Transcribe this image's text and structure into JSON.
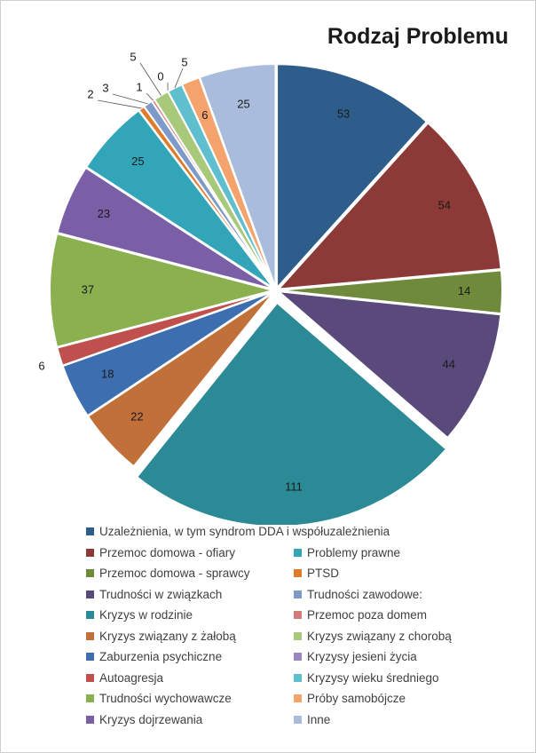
{
  "chart_data": {
    "type": "pie",
    "title": "Rodzaj Problemu",
    "legend_placement": "bottom",
    "slices": [
      {
        "name": "Uzależnienia, w tym syndrom DDA i współuzależnienia",
        "value": 53,
        "color": "#2e5d8c"
      },
      {
        "name": "Przemoc domowa  - ofiary",
        "value": 54,
        "color": "#8c3a38"
      },
      {
        "name": "Przemoc domowa - sprawcy",
        "value": 14,
        "color": "#6e8a3a"
      },
      {
        "name": "Trudności w związkach",
        "value": 44,
        "color": "#5a4a7c"
      },
      {
        "name": "Kryzys w rodzinie",
        "value": 111,
        "color": "#2b8a96"
      },
      {
        "name": "Kryzys związany z żałobą",
        "value": 22,
        "color": "#c1703a"
      },
      {
        "name": "Zaburzenia psychiczne",
        "value": 18,
        "color": "#3d6fb0"
      },
      {
        "name": "Autoagresja",
        "value": 6,
        "color": "#c0504d"
      },
      {
        "name": "Trudności wychowawcze",
        "value": 37,
        "color": "#8ab04f"
      },
      {
        "name": "Kryzys dojrzewania",
        "value": 23,
        "color": "#7b5fa6"
      },
      {
        "name": "Problemy prawne",
        "value": 25,
        "color": "#33a5b8"
      },
      {
        "name": "PTSD",
        "value": 2,
        "color": "#e07b2c"
      },
      {
        "name": "Trudności zawodowe:",
        "value": 3,
        "color": "#7d9ac8"
      },
      {
        "name": "Przemoc poza domem",
        "value": 1,
        "color": "#d27b7b"
      },
      {
        "name": "Kryzys związany z chorobą",
        "value": 5,
        "color": "#a9c97a"
      },
      {
        "name": "Kryzysy jesieni życia",
        "value": 0,
        "color": "#9a86c0"
      },
      {
        "name": "Kryzysy wieku średniego",
        "value": 5,
        "color": "#5fbfcf"
      },
      {
        "name": "Próby samobójcze",
        "value": 6,
        "color": "#f3a36b"
      },
      {
        "name": "Inne",
        "value": 25,
        "color": "#a9bcdb"
      }
    ],
    "legend": [
      "Uzależnienia, w tym syndrom DDA i współuzależnienia",
      "Przemoc domowa  - ofiary",
      "Problemy prawne",
      "Przemoc domowa - sprawcy",
      "PTSD",
      "Trudności w związkach",
      "Trudności zawodowe:",
      "Kryzys w rodzinie",
      "Przemoc poza domem",
      "Kryzys związany z żałobą",
      "Kryzys związany z chorobą",
      "Zaburzenia psychiczne",
      "Kryzysy jesieni życia",
      "Autoagresja",
      "Kryzysy wieku średniego",
      "Trudności wychowawcze",
      "Próby samobójcze",
      "Kryzys dojrzewania",
      "Inne"
    ]
  }
}
